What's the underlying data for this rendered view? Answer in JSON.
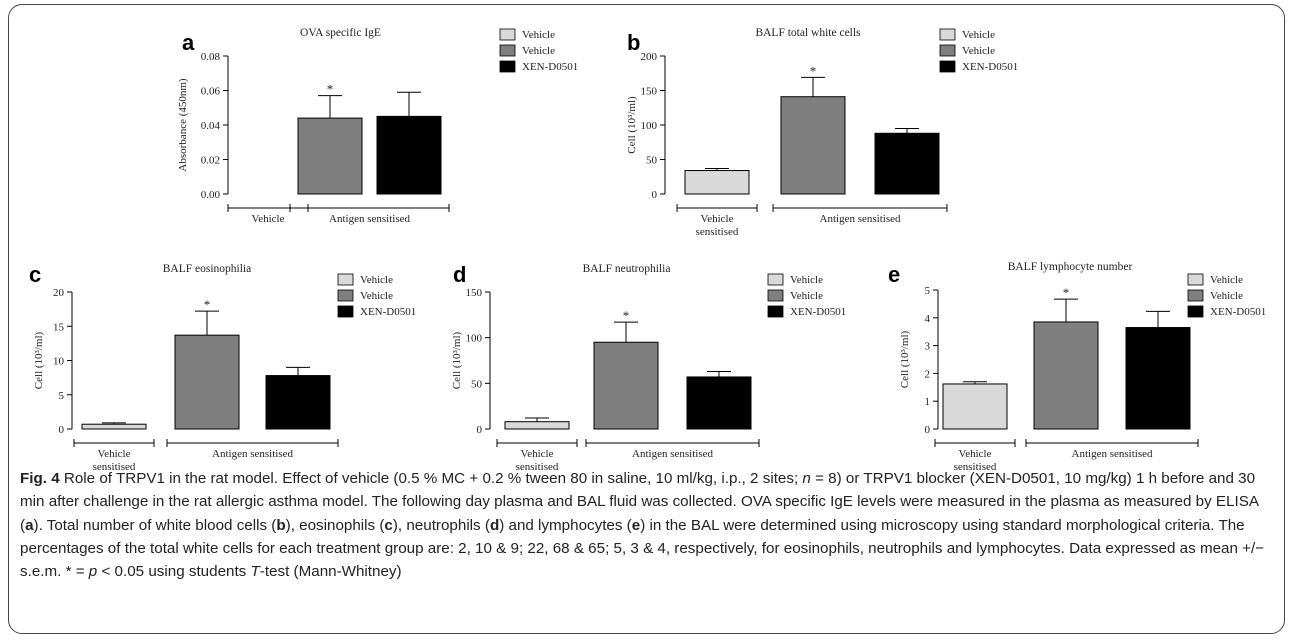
{
  "figure": {
    "caption_label": "Fig. 4",
    "caption_html": " Role of TRPV1 in the rat model. Effect of vehicle (0.5 % MC + 0.2 % tween 80 in saline, 10 ml/kg, i.p., 2 sites; <i>n</i> = 8) or TRPV1 blocker (XEN-D0501, 10 mg/kg) 1 h before and 30 min after challenge in the rat allergic asthma model. The following day plasma and BAL fluid was collected. OVA specific IgE levels were measured in the plasma as measured by ELISA (<b>a</b>). Total number of white blood cells (<b>b</b>), eosinophils (<b>c</b>), neutrophils (<b>d</b>) and lymphocytes (<b>e</b>) in the BAL were determined using microscopy using standard morphological criteria. The percentages of the total white cells for each treatment group are: 2, 10 &amp; 9; 22, 68 &amp; 65; 5, 3 &amp; 4, respectively, for eosinophils, neutrophils and lymphocytes. Data expressed as mean +/− s.e.m. * = <i>p</i> &lt; 0.05 using students <i>T</i>-test (Mann-Whitney)"
  },
  "colors": {
    "vehicle_sensitised": "#d9d9d9",
    "antigen_vehicle": "#7f7f7f",
    "xen": "#000000"
  },
  "groups": {
    "left": "Vehicle\nsensitised",
    "right": "Antigen sensitised"
  },
  "chart_data": [
    {
      "panel": "a",
      "type": "bar",
      "title": "OVA specific IgE",
      "ylabel": "Absorbance (450nm)",
      "ylim": [
        0,
        0.08
      ],
      "ticks": [
        "0.00",
        "0.02",
        "0.04",
        "0.06",
        "0.08"
      ],
      "categories": [
        "Vehicle",
        "Vehicle",
        "XEN-D0501"
      ],
      "values": [
        0,
        0.044,
        0.045
      ],
      "errors": [
        0,
        0.013,
        0.014
      ],
      "significant": [
        false,
        true,
        false
      ]
    },
    {
      "panel": "b",
      "type": "bar",
      "title": "BALF total white cells",
      "ylabel": "Cell (10³/ml)",
      "ylim": [
        0,
        200
      ],
      "ticks": [
        "0",
        "50",
        "100",
        "150",
        "200"
      ],
      "categories": [
        "Vehicle",
        "Vehicle",
        "XEN-D0501"
      ],
      "values": [
        34,
        141,
        88
      ],
      "errors": [
        3,
        28,
        7
      ],
      "significant": [
        false,
        true,
        false
      ]
    },
    {
      "panel": "c",
      "type": "bar",
      "title": "BALF eosinophilia",
      "ylabel": "Cell (10³/ml)",
      "ylim": [
        0,
        20
      ],
      "ticks": [
        "0",
        "5",
        "10",
        "15",
        "20"
      ],
      "categories": [
        "Vehicle",
        "Vehicle",
        "XEN-D0501"
      ],
      "values": [
        0.7,
        13.7,
        7.8
      ],
      "errors": [
        0.2,
        3.5,
        1.2
      ],
      "significant": [
        false,
        true,
        false
      ]
    },
    {
      "panel": "d",
      "type": "bar",
      "title": "BALF neutrophilia",
      "ylabel": "Cell (10³/ml)",
      "ylim": [
        0,
        150
      ],
      "ticks": [
        "0",
        "50",
        "100",
        "150"
      ],
      "categories": [
        "Vehicle",
        "Vehicle",
        "XEN-D0501"
      ],
      "values": [
        8,
        95,
        57
      ],
      "errors": [
        4,
        22,
        6
      ],
      "significant": [
        false,
        true,
        false
      ]
    },
    {
      "panel": "e",
      "type": "bar",
      "title": "BALF lymphocyte number",
      "ylabel": "Cell (10³/ml)",
      "ylim": [
        0,
        5
      ],
      "ticks": [
        "0",
        "1",
        "2",
        "3",
        "4",
        "5"
      ],
      "categories": [
        "Vehicle",
        "Vehicle",
        "XEN-D0501"
      ],
      "values": [
        1.62,
        3.85,
        3.65
      ],
      "errors": [
        0.08,
        0.82,
        0.58
      ],
      "significant": [
        false,
        true,
        false
      ]
    }
  ]
}
